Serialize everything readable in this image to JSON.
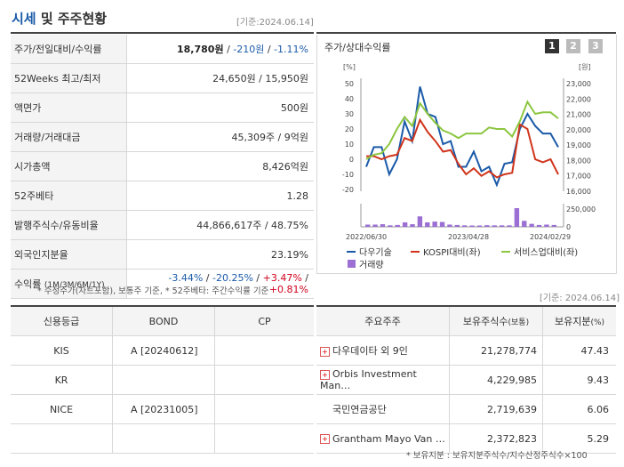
{
  "header": {
    "title_accent": "시세",
    "title_rest": " 및 주주현황",
    "base_date": "[기준:2024.06.14]"
  },
  "quote": {
    "price_label": "주가/전일대비/수익률",
    "price": "18,780원",
    "sep1": " / ",
    "change": "-210원",
    "sep2": " / ",
    "change_pct": "-1.11%",
    "w52_label": "52Weeks 최고/최저",
    "w52_value": "24,650원 / 15,950원",
    "par_label": "액면가",
    "par_value": "500원",
    "volume_label": "거래량/거래대금",
    "volume_value": "45,309주 / 9억원",
    "mcap_label": "시가총액",
    "mcap_value": "8,426억원",
    "beta_label": "52주베타",
    "beta_value": "1.28",
    "shares_label": "발행주식수/유동비율",
    "shares_value": "44,866,617주 / 48.75%",
    "foreign_label": "외국인지분율",
    "foreign_value": "23.19%",
    "return_label": "수익률",
    "return_period": "(1M/3M/6M/1Y)",
    "return_1m": "-3.44%",
    "return_3m": "-20.25%",
    "return_6m": "+3.47%",
    "return_1y": "+0.81%",
    "return_sep": " / ",
    "footnote": "* 수정주가(차트포함), 보통주 기준, * 52주베타: 주간수익률 기준"
  },
  "chart_panel": {
    "title": "주가/상대수익률",
    "tabs": [
      "1",
      "2",
      "3"
    ],
    "left_unit": "[%]",
    "right_unit": "[원]"
  },
  "chart_data": {
    "type": "line",
    "x_labels": [
      "2022/06/30",
      "2023/04/28",
      "2024/02/29"
    ],
    "left_ticks": [
      "50",
      "40",
      "30",
      "20",
      "10",
      "0",
      "-10",
      "-20"
    ],
    "right_ticks": [
      "23,000",
      "22,000",
      "21,000",
      "20,000",
      "19,000",
      "18,000",
      "17,000",
      "16,000"
    ],
    "volume_ticks": [
      "250,000",
      "0"
    ],
    "ylim_left": [
      -20,
      50
    ],
    "series": [
      {
        "name": "다우기술",
        "color": "#1a5aa8",
        "values": [
          -5,
          8,
          8,
          -10,
          0,
          25,
          12,
          48,
          30,
          28,
          10,
          12,
          -5,
          -5,
          5,
          -8,
          -5,
          -17,
          -3,
          -2,
          20,
          30,
          22,
          17,
          17,
          8
        ]
      },
      {
        "name": "KOSPI대비(좌)",
        "color": "#d0341b",
        "values": [
          2,
          2,
          0,
          2,
          3,
          14,
          12,
          26,
          18,
          12,
          5,
          6,
          -3,
          -10,
          -6,
          -11,
          -8,
          -12,
          -10,
          -9,
          23,
          20,
          0,
          -2,
          0,
          -10
        ]
      },
      {
        "name": "서비스업대비(좌)",
        "color": "#8cc63f",
        "values": [
          0,
          3,
          4,
          10,
          20,
          28,
          22,
          37,
          30,
          24,
          19,
          17,
          14,
          17,
          17,
          17,
          21,
          20,
          20,
          15,
          25,
          38,
          30,
          31,
          31,
          27
        ]
      }
    ],
    "volume": {
      "name": "거래량",
      "color": "#9b6fd3",
      "values": [
        30000,
        30000,
        35000,
        20000,
        25000,
        60000,
        35000,
        140000,
        60000,
        70000,
        65000,
        30000,
        25000,
        20000,
        18000,
        18000,
        22000,
        20000,
        20000,
        20000,
        250000,
        80000,
        40000,
        25000,
        30000,
        25000
      ]
    },
    "legend_position": "bottom"
  },
  "credit": {
    "headers": [
      "신용등급",
      "BOND",
      "CP"
    ],
    "rows": [
      {
        "agency": "KIS",
        "bond": "A  [20240612]",
        "cp": ""
      },
      {
        "agency": "KR",
        "bond": "",
        "cp": ""
      },
      {
        "agency": "NICE",
        "bond": "A  [20231005]",
        "cp": ""
      },
      {
        "agency": "",
        "bond": "",
        "cp": ""
      }
    ]
  },
  "holders": {
    "base_date": "[기준: 2024.06.14]",
    "headers": [
      "주요주주",
      "보유주식수",
      "(보통)",
      "보유지분",
      "(%)"
    ],
    "rows": [
      {
        "name": "다우데이타 외 9인",
        "shares": "21,278,774",
        "pct": "47.43",
        "expand": true
      },
      {
        "name": "Orbis Investment Man…",
        "shares": "4,229,985",
        "pct": "9.43",
        "expand": true
      },
      {
        "name": "국민연금공단",
        "shares": "2,719,639",
        "pct": "6.06",
        "expand": false
      },
      {
        "name": "Grantham Mayo Van …",
        "shares": "2,372,823",
        "pct": "5.29",
        "expand": true
      }
    ],
    "footnote": "* 보유지분 : 보유지분주식수/지수산정주식수×100"
  }
}
